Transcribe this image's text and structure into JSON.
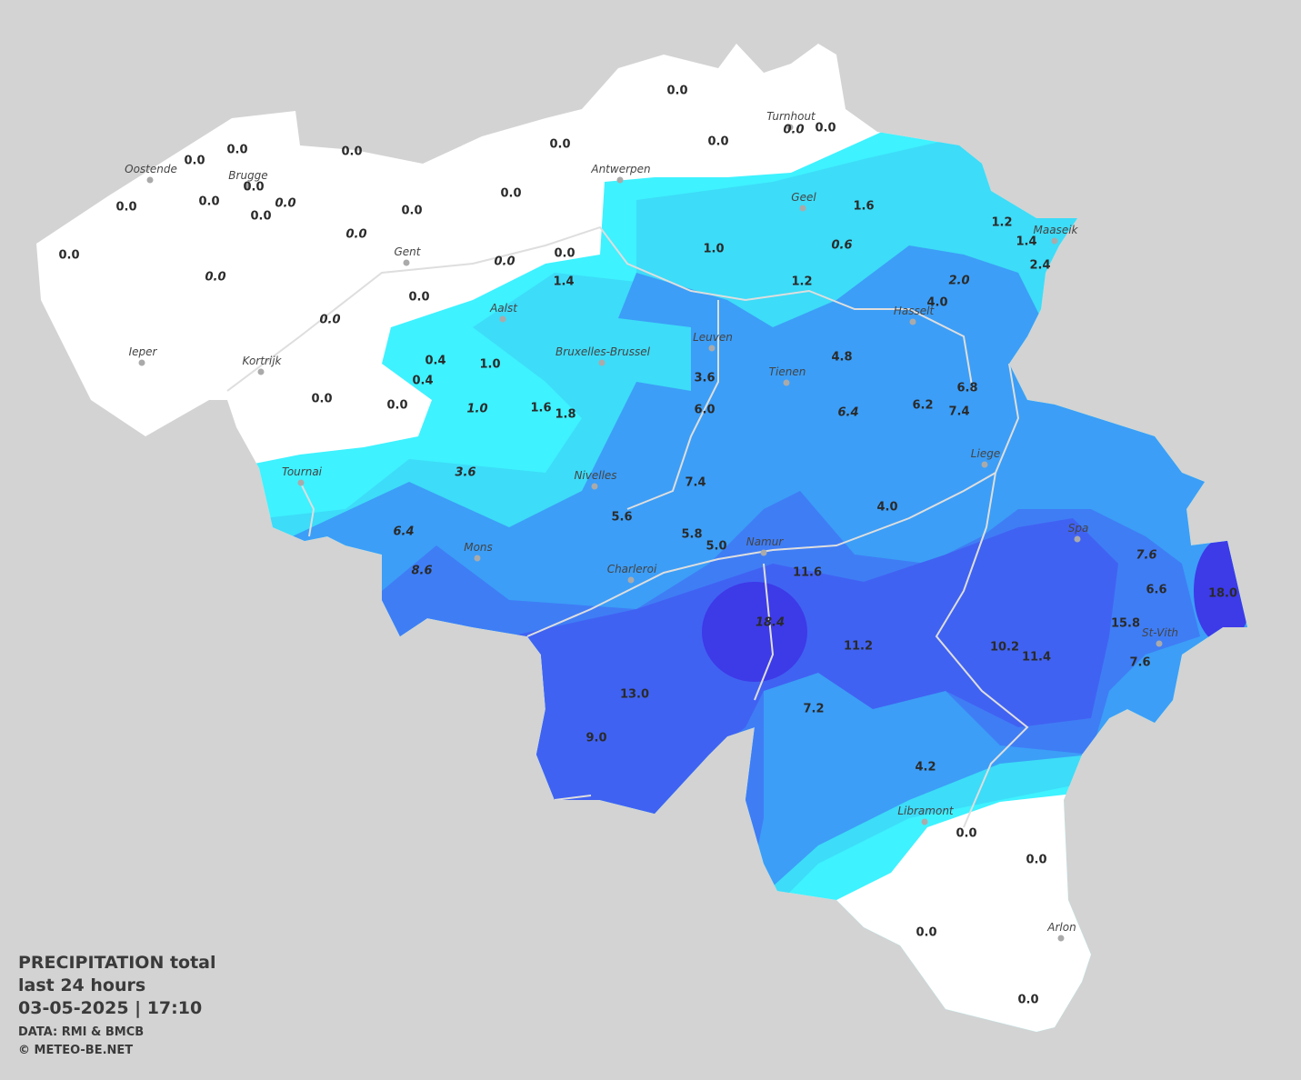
{
  "legend": {
    "title": "PRECIPITATION total",
    "period": "last 24 hours",
    "timestamp": "03-05-2025  |  17:10",
    "source": "DATA: RMI & BMCB",
    "copyright": "© METEO-BE.NET"
  },
  "cities": [
    "Oostende",
    "Brugge",
    "Antwerpen",
    "Turnhout",
    "Geel",
    "Maaseik",
    "Gent",
    "Aalst",
    "Hasselt",
    "Leuven",
    "Bruxelles-Brussel",
    "Ieper",
    "Kortrijk",
    "Tienen",
    "Liege",
    "Tournai",
    "Nivelles",
    "Spa",
    "Mons",
    "Namur",
    "Charleroi",
    "St-Vith",
    "Libramont",
    "Arlon"
  ],
  "stations": [
    "0.0",
    "0.0",
    "0.0",
    "0.0",
    "0.0",
    "0.0",
    "0.0",
    "0.0",
    "0.0",
    "0.0",
    "0.0",
    "0.0",
    "0.0",
    "0.0",
    "0.0",
    "0.0",
    "0.0",
    "0.0",
    "0.0",
    "0.0",
    "1.4",
    "0.0",
    "0.0",
    "1.6",
    "1.2",
    "1.4",
    "2.4",
    "1.0",
    "0.6",
    "1.2",
    "2.0",
    "4.0",
    "0.4",
    "1.0",
    "0.4",
    "0.0",
    "0.0",
    "1.0",
    "1.6",
    "1.8",
    "3.6",
    "4.8",
    "6.8",
    "6.0",
    "6.4",
    "6.2",
    "7.4",
    "3.6",
    "7.4",
    "5.6",
    "4.0",
    "6.4",
    "5.8",
    "5.0",
    "8.6",
    "11.6",
    "7.6",
    "6.6",
    "18.0",
    "18.4",
    "11.2",
    "10.2",
    "11.4",
    "15.8",
    "7.6",
    "13.0",
    "7.2",
    "9.0",
    "4.2",
    "0.0",
    "0.0",
    "0.0",
    "0.0"
  ]
}
